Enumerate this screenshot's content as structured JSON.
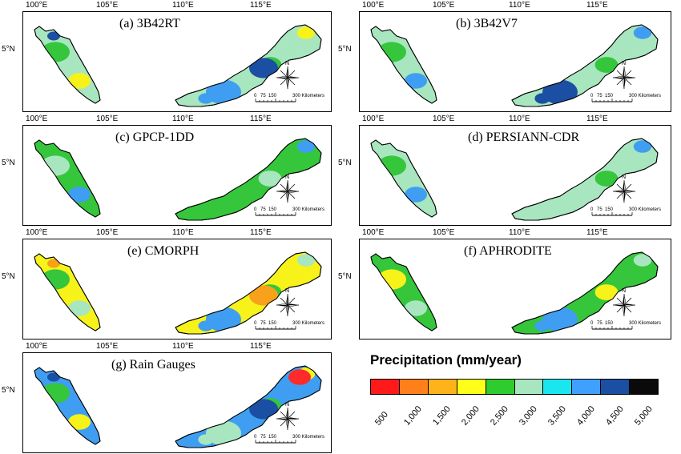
{
  "panels": [
    {
      "id": "a",
      "title": "(a) 3B42RT",
      "fill": "#a8e6bf",
      "accents": [
        "#35c63c",
        "#f7f31a",
        "#3f9ef2",
        "#1b4fa3"
      ]
    },
    {
      "id": "b",
      "title": "(b) 3B42V7",
      "fill": "#a8e6bf",
      "accents": [
        "#35c63c",
        "#3f9ef2",
        "#1b4fa3"
      ]
    },
    {
      "id": "c",
      "title": "(c) GPCP-1DD",
      "fill": "#35c63c",
      "accents": [
        "#a8e6bf",
        "#3f9ef2"
      ]
    },
    {
      "id": "d",
      "title": "(d) PERSIANN-CDR",
      "fill": "#a8e6bf",
      "accents": [
        "#35c63c",
        "#3f9ef2"
      ]
    },
    {
      "id": "e",
      "title": "(e) CMORPH",
      "fill": "#f7f31a",
      "accents": [
        "#35c63c",
        "#a8e6bf",
        "#3f9ef2",
        "#f7a21a"
      ]
    },
    {
      "id": "f",
      "title": "(f) APHRODITE",
      "fill": "#35c63c",
      "accents": [
        "#f7f31a",
        "#a8e6bf",
        "#3f9ef2"
      ]
    },
    {
      "id": "g",
      "title": "(g) Rain Gauges",
      "fill": "#3f9ef2",
      "accents": [
        "#35c63c",
        "#f7f31a",
        "#a8e6bf",
        "#1b4fa3",
        "#ff2a2a"
      ]
    }
  ],
  "axis": {
    "lon_ticks": [
      "100°E",
      "105°E",
      "110°E",
      "115°E"
    ],
    "lat_tick": "5°N"
  },
  "scalebar": {
    "labels": [
      "0",
      "75",
      "150",
      "300 Kilometers"
    ]
  },
  "compass": {
    "north": "N"
  },
  "legend": {
    "title": "Precipitation (mm/year)",
    "colors": [
      "#ff1a1a",
      "#ff7f1a",
      "#ffb31a",
      "#ffff1a",
      "#2ecc2e",
      "#a8e6bf",
      "#1ae6f0",
      "#3fa0ff",
      "#1b4fa3",
      "#0a0a0a"
    ],
    "labels": [
      "500",
      "1,000",
      "1,500",
      "2,000",
      "2,500",
      "3,000",
      "3,500",
      "4,000",
      "4,500",
      "5,000"
    ]
  }
}
